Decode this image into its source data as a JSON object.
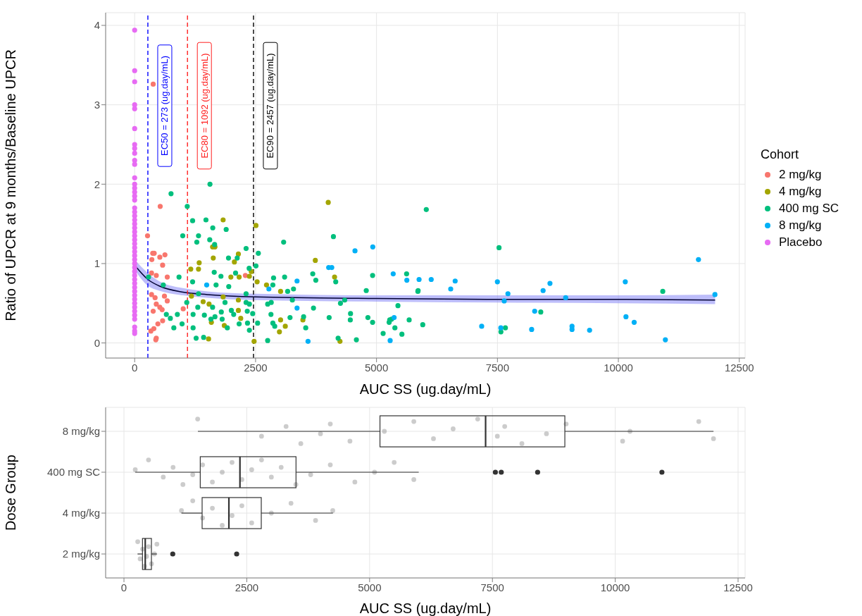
{
  "chart_data": [
    {
      "type": "scatter",
      "xlabel": "AUC SS (ug.day/mL)",
      "ylabel": "Ratio of UPCR at 9 months/Baseline UPCR",
      "legend_title": "Cohort",
      "legend": "right",
      "marker": "circle",
      "grid": true,
      "xlim": [
        -600,
        12620
      ],
      "xticks": [
        0,
        2500,
        5000,
        7500,
        10000,
        12500
      ],
      "ylim": [
        -0.19,
        4.16
      ],
      "yticks": [
        0,
        1,
        2,
        3,
        4
      ],
      "ref_lines": [
        {
          "axis": "x",
          "value": 273,
          "label": "EC50 = 273 (ug.day/mL)",
          "color": "#0000ff",
          "line_style": "dashed"
        },
        {
          "axis": "x",
          "value": 1092,
          "label": "EC80 = 1092 (ug.day/mL)",
          "color": "#ff2020",
          "line_style": "dashed"
        },
        {
          "axis": "x",
          "value": 2457,
          "label": "EC90 = 2457 (ug.day/mL)",
          "color": "#000000",
          "line_style": "dashed"
        }
      ],
      "series": [
        {
          "name": "2 mg/kg",
          "color": "#f8766d",
          "x": [
            383,
            528,
            266,
            374,
            355,
            578,
            520,
            626,
            349,
            447,
            674,
            349,
            422,
            616,
            674,
            447,
            520,
            568,
            383,
            1004,
            578,
            480,
            397,
            335,
            447,
            437,
            2289,
            404
          ],
          "values": [
            3.26,
            1.72,
            1.35,
            1.13,
            1.05,
            0.98,
            1.08,
            1.11,
            0.88,
            0.85,
            0.83,
            0.61,
            0.57,
            0.59,
            0.53,
            0.49,
            0.45,
            0.42,
            0.4,
            0.43,
            0.28,
            0.24,
            0.18,
            0.15,
            0.06,
            0.04,
            0.85,
            1.13
          ]
        },
        {
          "name": "4 mg/kg",
          "color": "#a3a500",
          "x": [
            1829,
            1611,
            1660,
            1625,
            2144,
            2062,
            1334,
            1160,
            1320,
            2508,
            2411,
            2532,
            1989,
            2160,
            2372,
            1829,
            1174,
            1416,
            1538,
            2144,
            2144,
            2193,
            1853,
            1586,
            1528,
            2469,
            2726,
            3017,
            3017,
            3114,
            2993,
            3478,
            4002,
            3735,
            4133,
            4245
          ],
          "values": [
            1.55,
            1.21,
            1.21,
            1.07,
            1.12,
            1.02,
            1.01,
            0.93,
            0.93,
            1.48,
            0.9,
            0.77,
            0.83,
            0.83,
            0.84,
            0.58,
            0.59,
            0.52,
            0.49,
            0.54,
            0.41,
            0.31,
            0.22,
            0.26,
            0.05,
            0.02,
            0.73,
            0.65,
            0.29,
            0.21,
            0.14,
            0.29,
            1.77,
            1.04,
            0.83,
            0.02
          ]
        },
        {
          "name": "400 mg SC",
          "color": "#00bf7d",
          "x": [
            752,
            1557,
            1087,
            1198,
            1474,
            1615,
            1892,
            994,
            1320,
            1285,
            1552,
            1653,
            2304,
            2557,
            1940,
            2120,
            3080,
            4109,
            287,
            917,
            1198,
            1645,
            1784,
            2086,
            2367,
            2508,
            592,
            1683,
            1945,
            2304,
            1320,
            1077,
            1305,
            1611,
            1868,
            2304,
            2372,
            655,
            883,
            1208,
            1441,
            1576,
            1660,
            1791,
            1999,
            2047,
            2328,
            2440,
            738,
            810,
            980,
            1208,
            1271,
            1426,
            1809,
            1916,
            2160,
            2333,
            2372,
            2542,
            2750,
            2750,
            2823,
            2857,
            2872,
            3100,
            3163,
            3284,
            3260,
            2818,
            2857,
            2896,
            3212,
            3493,
            3537,
            3682,
            3745,
            3697,
            4021,
            4157,
            4255,
            4342,
            4206,
            4463,
            4458,
            4584,
            4788,
            4822,
            4919,
            4919,
            5137,
            5273,
            5380,
            5443,
            5525,
            5622,
            5675,
            5855,
            6029,
            7533,
            5860,
            5311,
            5261,
            5956,
            8396,
            7572,
            7664,
            10918
          ],
          "values": [
            1.88,
            2.0,
            1.72,
            1.54,
            1.55,
            1.45,
            1.43,
            1.35,
            1.35,
            1.27,
            1.3,
            1.24,
            1.19,
            1.13,
            1.07,
            1.07,
            1.27,
            1.34,
            0.83,
            0.83,
            0.77,
            0.89,
            0.84,
            0.88,
            0.94,
            0.97,
            0.73,
            0.73,
            0.71,
            0.62,
            0.62,
            0.51,
            0.45,
            0.45,
            0.51,
            0.51,
            0.49,
            0.36,
            0.36,
            0.36,
            0.35,
            0.3,
            0.33,
            0.39,
            0.41,
            0.36,
            0.4,
            0.37,
            0.31,
            0.19,
            0.24,
            0.19,
            0.06,
            0.07,
            0.3,
            0.19,
            0.24,
            0.25,
            0.16,
            0.25,
            0.03,
            0.49,
            0.51,
            0.73,
            0.82,
            0.83,
            0.65,
            0.68,
            0.54,
            0.36,
            0.25,
            0.21,
            0.32,
            0.33,
            0.19,
            0.87,
            0.79,
            0.44,
            0.32,
            0.77,
            0.5,
            0.54,
            0.06,
            0.37,
            0.29,
            0.04,
            0.66,
            0.32,
            0.85,
            0.26,
            0.12,
            0.29,
            0.19,
            0.47,
            0.11,
            0.87,
            0.29,
            0.65,
            1.68,
            1.2,
            0.66,
            0.3,
            0.26,
            0.23,
            0.39,
            0.14,
            0.19,
            0.65
          ]
        },
        {
          "name": "8 mg/kg",
          "color": "#00b0f6",
          "x": [
            1489,
            2775,
            3357,
            3357,
            3584,
            4011,
            4075,
            4555,
            4923,
            5345,
            5627,
            5880,
            5364,
            5282,
            6131,
            6626,
            6534,
            7499,
            7717,
            7640,
            8444,
            8586,
            8911,
            8270,
            7174,
            7570,
            8207,
            9042,
            9042,
            9405,
            10143,
            10157,
            10327,
            10972,
            11656,
            11996
          ],
          "values": [
            0.73,
            0.68,
            0.78,
            0.44,
            0.02,
            0.95,
            0.95,
            1.16,
            1.21,
            0.87,
            0.79,
            0.8,
            0.32,
            0.03,
            0.8,
            0.78,
            0.68,
            0.77,
            0.62,
            0.53,
            0.66,
            0.75,
            0.57,
            0.4,
            0.21,
            0.19,
            0.17,
            0.21,
            0.17,
            0.16,
            0.77,
            0.33,
            0.26,
            0.04,
            1.05,
            0.61
          ]
        },
        {
          "name": "Placebo",
          "color": "#e76bf3",
          "x": [
            0,
            0,
            0,
            0,
            0,
            0,
            0,
            0,
            0,
            0,
            0,
            0,
            0,
            0,
            0,
            0,
            0,
            0,
            0,
            0,
            0,
            0,
            0,
            0,
            0,
            0,
            0,
            0,
            0,
            0,
            0,
            0,
            0,
            0,
            0,
            0,
            0,
            0,
            0,
            0,
            0,
            0,
            0,
            0,
            0,
            0,
            0,
            0,
            0
          ],
          "values": [
            3.94,
            3.43,
            3.29,
            3.0,
            2.95,
            2.7,
            2.5,
            2.45,
            2.39,
            2.3,
            2.25,
            2.08,
            2.0,
            1.95,
            1.9,
            1.85,
            1.8,
            1.7,
            1.65,
            1.6,
            1.55,
            1.5,
            1.45,
            1.4,
            1.35,
            1.3,
            1.25,
            1.2,
            1.15,
            1.1,
            1.05,
            1.0,
            0.95,
            0.9,
            0.85,
            0.8,
            0.75,
            0.7,
            0.65,
            0.6,
            0.55,
            0.5,
            0.45,
            0.4,
            0.35,
            0.3,
            0.2,
            0.15,
            0.12
          ]
        },
        {
          "type": "line",
          "marker": "none",
          "color": "#000033",
          "x": [
            0,
            273,
            500,
            1000,
            1500,
            2500,
            5000,
            7500,
            10000,
            12000
          ],
          "values": [
            0.98,
            0.8,
            0.72,
            0.64,
            0.61,
            0.58,
            0.56,
            0.55,
            0.55,
            0.54
          ],
          "lower": [
            0.92,
            0.72,
            0.66,
            0.6,
            0.57,
            0.54,
            0.52,
            0.51,
            0.5,
            0.49
          ],
          "upper": [
            1.05,
            0.88,
            0.78,
            0.69,
            0.65,
            0.62,
            0.6,
            0.6,
            0.6,
            0.61
          ]
        }
      ]
    },
    {
      "type": "box",
      "orientation": "horizontal",
      "xlabel": "AUC SS (ug.day/mL)",
      "ylabel": "Dose Group",
      "grid": true,
      "categories": [
        "8 mg/kg",
        "400 mg SC",
        "4 mg/kg",
        "2 mg/kg"
      ],
      "xlim": [
        -373,
        12643
      ],
      "xticks": [
        0,
        2500,
        5000,
        7500,
        10000,
        12500
      ],
      "boxes": [
        {
          "low": 1505,
          "q1": 5211,
          "median": 7361,
          "q3": 8974,
          "high": 12000
        },
        {
          "low": 230,
          "q1": 1553,
          "median": 2361,
          "q3": 3502,
          "high": 6000,
          "outliers": [
            7560,
            7680,
            8420,
            10950
          ]
        },
        {
          "low": 1170,
          "q1": 1591,
          "median": 2136,
          "q3": 2795,
          "high": 4253
        },
        {
          "low": 277,
          "q1": 377,
          "median": 433,
          "q3": 559,
          "high": 669,
          "outliers": [
            993,
            2294
          ]
        }
      ],
      "series": [
        {
          "type": "scatter",
          "color": "#7f7f7f",
          "x": [
            "8 mg/kg",
            "8 mg/kg",
            "8 mg/kg",
            "8 mg/kg",
            "8 mg/kg",
            "8 mg/kg",
            "8 mg/kg",
            "8 mg/kg",
            "8 mg/kg",
            "8 mg/kg",
            "8 mg/kg",
            "8 mg/kg",
            "8 mg/kg",
            "8 mg/kg",
            "8 mg/kg",
            "8 mg/kg",
            "8 mg/kg",
            "8 mg/kg",
            "8 mg/kg",
            "8 mg/kg",
            "8 mg/kg",
            "400 mg SC",
            "400 mg SC",
            "400 mg SC",
            "400 mg SC",
            "400 mg SC",
            "400 mg SC",
            "400 mg SC",
            "400 mg SC",
            "400 mg SC",
            "400 mg SC",
            "400 mg SC",
            "400 mg SC",
            "400 mg SC",
            "400 mg SC",
            "400 mg SC",
            "400 mg SC",
            "400 mg SC",
            "400 mg SC",
            "400 mg SC",
            "400 mg SC",
            "400 mg SC",
            "400 mg SC",
            "4 mg/kg",
            "4 mg/kg",
            "4 mg/kg",
            "4 mg/kg",
            "4 mg/kg",
            "4 mg/kg",
            "4 mg/kg",
            "4 mg/kg",
            "4 mg/kg",
            "4 mg/kg",
            "4 mg/kg",
            "4 mg/kg",
            "2 mg/kg",
            "2 mg/kg",
            "2 mg/kg",
            "2 mg/kg",
            "2 mg/kg",
            "2 mg/kg",
            "2 mg/kg",
            "2 mg/kg",
            "2 mg/kg"
          ],
          "values": [
            1500,
            2800,
            3300,
            3600,
            4000,
            4200,
            4600,
            5300,
            5900,
            6300,
            6700,
            7200,
            7600,
            7750,
            8100,
            8600,
            9000,
            10150,
            10300,
            11700,
            12000,
            230,
            500,
            800,
            1000,
            1200,
            1400,
            1600,
            1800,
            2000,
            2200,
            2400,
            2600,
            2800,
            3000,
            3200,
            3500,
            3800,
            4200,
            4700,
            5100,
            5500,
            5900,
            1170,
            1400,
            1600,
            1800,
            2000,
            2200,
            2400,
            2600,
            3000,
            3400,
            3900,
            4250,
            280,
            330,
            380,
            420,
            460,
            500,
            560,
            620,
            670
          ]
        }
      ]
    }
  ]
}
